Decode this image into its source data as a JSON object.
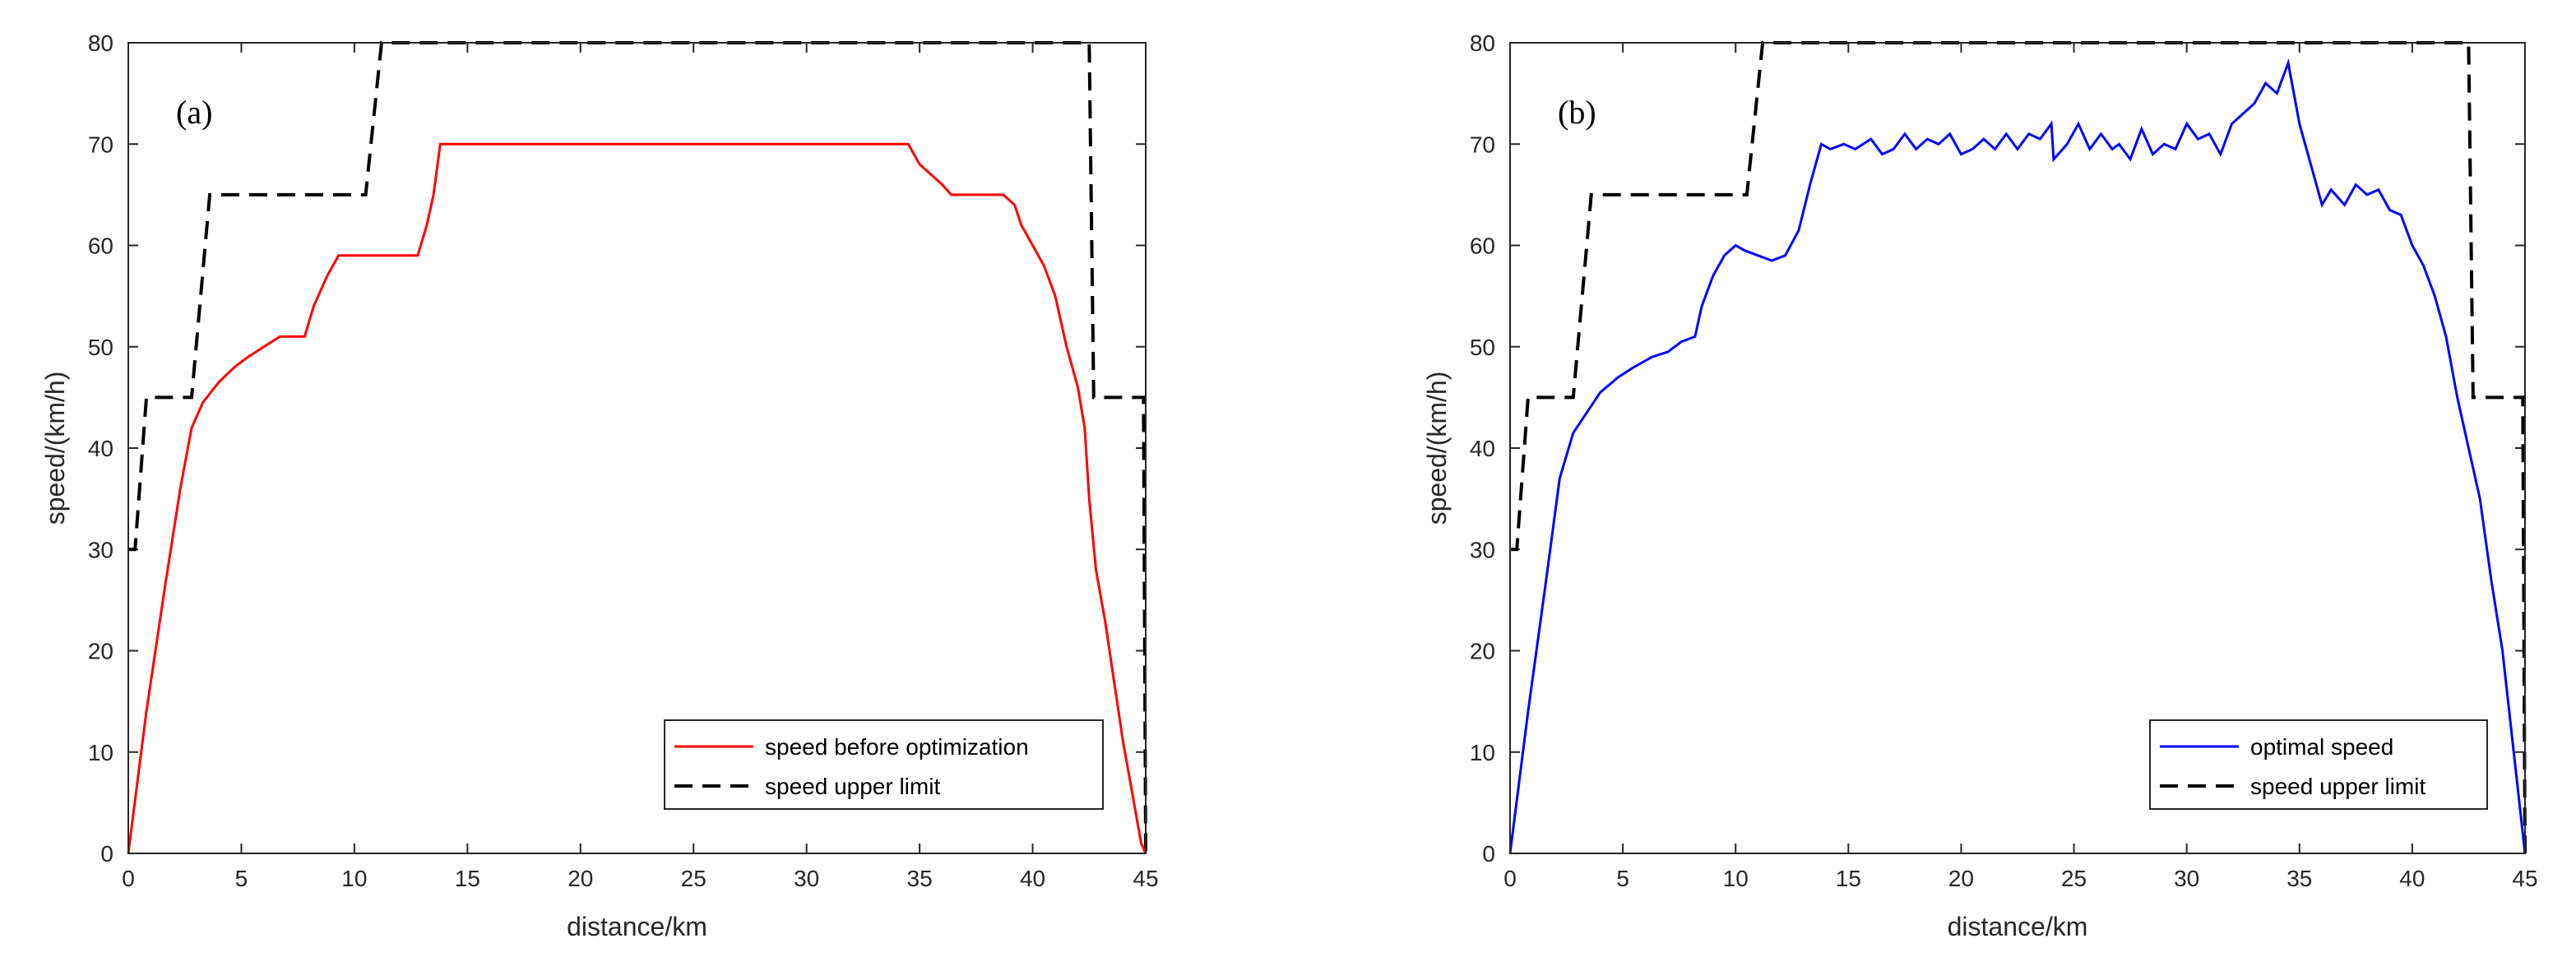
{
  "chart_data": [
    {
      "type": "line",
      "panel_label": "(a)",
      "xlabel": "distance/km",
      "ylabel": "speed/(km/h)",
      "xlim": [
        0,
        45
      ],
      "ylim": [
        0,
        80
      ],
      "xticks": [
        "0",
        "5",
        "10",
        "15",
        "20",
        "25",
        "30",
        "35",
        "40",
        "45"
      ],
      "yticks": [
        "0",
        "10",
        "20",
        "30",
        "40",
        "50",
        "60",
        "70",
        "80"
      ],
      "legend_position": "bottom-right",
      "colors": {
        "main": "#ff0000",
        "limit": "#000000"
      },
      "series": [
        {
          "name": "speed before optimization",
          "x": [
            0,
            0.8,
            1.6,
            2.3,
            2.8,
            3.3,
            4,
            4.7,
            5.3,
            6,
            6.7,
            7.5,
            7.8,
            8.2,
            8.4,
            8.8,
            9.3,
            10,
            11,
            12,
            12.8,
            13.2,
            13.5,
            13.8,
            15,
            20,
            25,
            30,
            34.5,
            35,
            35.5,
            36,
            36.4,
            37,
            38,
            38.7,
            39.2,
            39.5,
            40,
            40.5,
            41,
            41.5,
            42,
            42.3,
            42.5,
            42.8,
            43.2,
            43.6,
            44,
            44.4,
            44.8,
            45
          ],
          "y": [
            0,
            14,
            26,
            36,
            42,
            44.5,
            46.5,
            48,
            49,
            50,
            51,
            51,
            51,
            54,
            55,
            57,
            59,
            59,
            59,
            59,
            59,
            62,
            65,
            70,
            70,
            70,
            70,
            70,
            70,
            68,
            67,
            66,
            65,
            65,
            65,
            65,
            64,
            62,
            60,
            58,
            55,
            50,
            46,
            42,
            35,
            28,
            23,
            17,
            11,
            6,
            1,
            0
          ]
        },
        {
          "name": "speed upper limit",
          "x": [
            0,
            0.3,
            0.8,
            2.8,
            3.6,
            10.5,
            11.2,
            42.5,
            42.7,
            44.9,
            45
          ],
          "y": [
            30,
            30,
            45,
            45,
            65,
            65,
            80,
            80,
            45,
            45,
            0
          ]
        }
      ]
    },
    {
      "type": "line",
      "panel_label": "(b)",
      "xlabel": "distance/km",
      "ylabel": "speed/(km/h)",
      "xlim": [
        0,
        45
      ],
      "ylim": [
        0,
        80
      ],
      "xticks": [
        "0",
        "5",
        "10",
        "15",
        "20",
        "25",
        "30",
        "35",
        "40",
        "45"
      ],
      "yticks": [
        "0",
        "10",
        "20",
        "30",
        "40",
        "50",
        "60",
        "70",
        "80"
      ],
      "legend_position": "bottom-right",
      "colors": {
        "main": "#0000ff",
        "limit": "#000000"
      },
      "series": [
        {
          "name": "optimal speed",
          "x": [
            0,
            0.8,
            1.6,
            2.2,
            2.8,
            3.4,
            4,
            4.8,
            5.5,
            6.3,
            7,
            7.6,
            8.2,
            8.5,
            9,
            9.5,
            10,
            10.4,
            11,
            11.6,
            12.2,
            12.8,
            13.3,
            13.8,
            14.2,
            14.8,
            15.3,
            16,
            16.5,
            17,
            17.5,
            18,
            18.5,
            19,
            19.5,
            20,
            20.5,
            21,
            21.5,
            22,
            22.5,
            23,
            23.5,
            24,
            24.1,
            24.3,
            24.7,
            25.2,
            25.7,
            26.2,
            26.7,
            27,
            27.5,
            28,
            28.5,
            29,
            29.5,
            30,
            30.5,
            31,
            31.5,
            32,
            32.5,
            33,
            33.5,
            34,
            34.5,
            35,
            35.5,
            36,
            36.4,
            37,
            37.5,
            38,
            38.5,
            39,
            39.5,
            40,
            40.5,
            41,
            41.5,
            42,
            42.5,
            43,
            43.5,
            44,
            44.5,
            45
          ],
          "y": [
            0,
            14,
            27,
            37,
            41.5,
            43.5,
            45.5,
            47,
            48,
            49,
            49.5,
            50.5,
            51,
            54,
            57,
            59,
            60,
            59.5,
            59,
            58.5,
            59,
            61.5,
            66,
            70,
            69.5,
            70,
            69.5,
            70.5,
            69,
            69.5,
            71,
            69.5,
            70.5,
            70,
            71,
            69,
            69.5,
            70.5,
            69.5,
            71,
            69.5,
            71,
            70.5,
            72,
            68.5,
            69,
            70,
            72,
            69.5,
            71,
            69.5,
            70,
            68.5,
            71.5,
            69,
            70,
            69.5,
            72,
            70.5,
            71,
            69,
            72,
            73,
            74,
            76,
            75,
            78,
            72,
            68,
            64,
            65.5,
            64,
            66,
            65,
            65.5,
            63.5,
            63,
            60,
            58,
            55,
            51,
            45,
            40,
            35,
            27,
            20,
            10,
            0
          ]
        },
        {
          "name": "speed upper limit",
          "x": [
            0,
            0.3,
            0.8,
            2.8,
            3.6,
            10.5,
            11.2,
            42.5,
            42.7,
            44.9,
            45
          ],
          "y": [
            30,
            30,
            45,
            45,
            65,
            65,
            80,
            80,
            45,
            45,
            0
          ]
        }
      ]
    }
  ]
}
